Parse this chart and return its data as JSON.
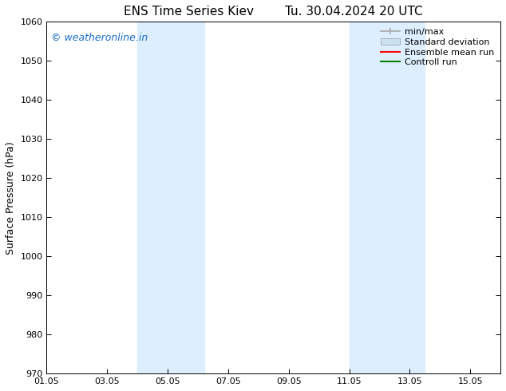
{
  "title_left": "ENS Time Series Kiev",
  "title_right": "Tu. 30.04.2024 20 UTC",
  "ylabel": "Surface Pressure (hPa)",
  "ylim": [
    970,
    1060
  ],
  "yticks": [
    970,
    980,
    990,
    1000,
    1010,
    1020,
    1030,
    1040,
    1050,
    1060
  ],
  "xtick_labels": [
    "01.05",
    "03.05",
    "05.05",
    "07.05",
    "09.05",
    "11.05",
    "13.05",
    "15.05"
  ],
  "xtick_positions": [
    0,
    2,
    4,
    6,
    8,
    10,
    12,
    14
  ],
  "xlim": [
    0,
    15
  ],
  "background_color": "#ffffff",
  "plot_bg_color": "#ffffff",
  "shaded_bands": [
    {
      "x_start": 3.0,
      "x_end": 5.2,
      "color": "#ddeeff"
    },
    {
      "x_start": 10.0,
      "x_end": 12.5,
      "color": "#ddeeff"
    }
  ],
  "watermark_text": "© weatheronline.in",
  "watermark_color": "#1a6fc4",
  "legend_minmax_color": "#aaaaaa",
  "legend_std_color": "#cce0f0",
  "legend_ens_color": "#ff0000",
  "legend_ctrl_color": "#008000",
  "title_fontsize": 11,
  "axis_label_fontsize": 9,
  "tick_fontsize": 8,
  "watermark_fontsize": 9,
  "legend_fontsize": 8
}
